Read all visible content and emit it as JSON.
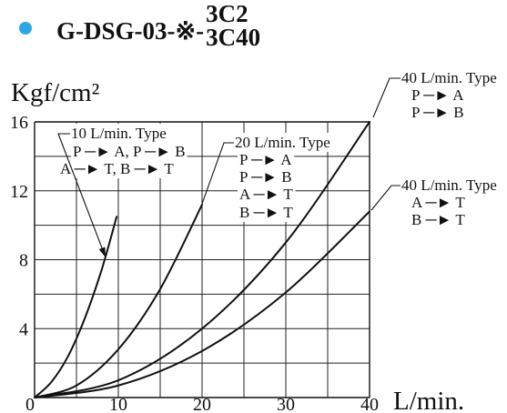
{
  "title": {
    "bullet_icon": "bullet-dot-icon",
    "bullet_color": "#2ea6e6",
    "model": "G-DSG-03-※-",
    "variant_top": "3C2",
    "variant_bottom": "3C40"
  },
  "chart_data": {
    "type": "line",
    "xlabel": "L/min.",
    "ylabel": "Kgf/cm²",
    "xlim": [
      0,
      40
    ],
    "ylim": [
      0,
      16
    ],
    "xticks": [
      0,
      10,
      20,
      30,
      40
    ],
    "yticks": [
      4,
      8,
      12,
      16
    ],
    "grid": true,
    "x_grid_step": 5,
    "y_grid_step": 2,
    "series": [
      {
        "name": "10 L/min. Type",
        "flows": [
          "P ─► A, P ─► B",
          "A ─► T, B ─► T"
        ],
        "x": [
          0,
          2,
          4,
          6,
          8,
          9.8
        ],
        "y": [
          0,
          0.9,
          2.4,
          4.6,
          7.4,
          10.5
        ]
      },
      {
        "name": "20 L/min. Type",
        "flows": [
          "P ─► A",
          "P ─► B",
          "A ─► T",
          "B ─► T"
        ],
        "x": [
          0,
          5,
          10,
          15,
          20
        ],
        "y": [
          0,
          0.7,
          2.8,
          6.3,
          11.2
        ]
      },
      {
        "name": "40 L/min. Type",
        "flows": [
          "P ─► A",
          "P ─► B"
        ],
        "x": [
          0,
          10,
          20,
          30,
          40
        ],
        "y": [
          0,
          1.0,
          4.0,
          9.0,
          16.0
        ]
      },
      {
        "name": "40 L/min. Type",
        "flows": [
          "A ─► T",
          "B ─► T"
        ],
        "x": [
          0,
          10,
          20,
          30,
          40
        ],
        "y": [
          0,
          0.7,
          2.7,
          6.1,
          10.8
        ]
      }
    ]
  }
}
